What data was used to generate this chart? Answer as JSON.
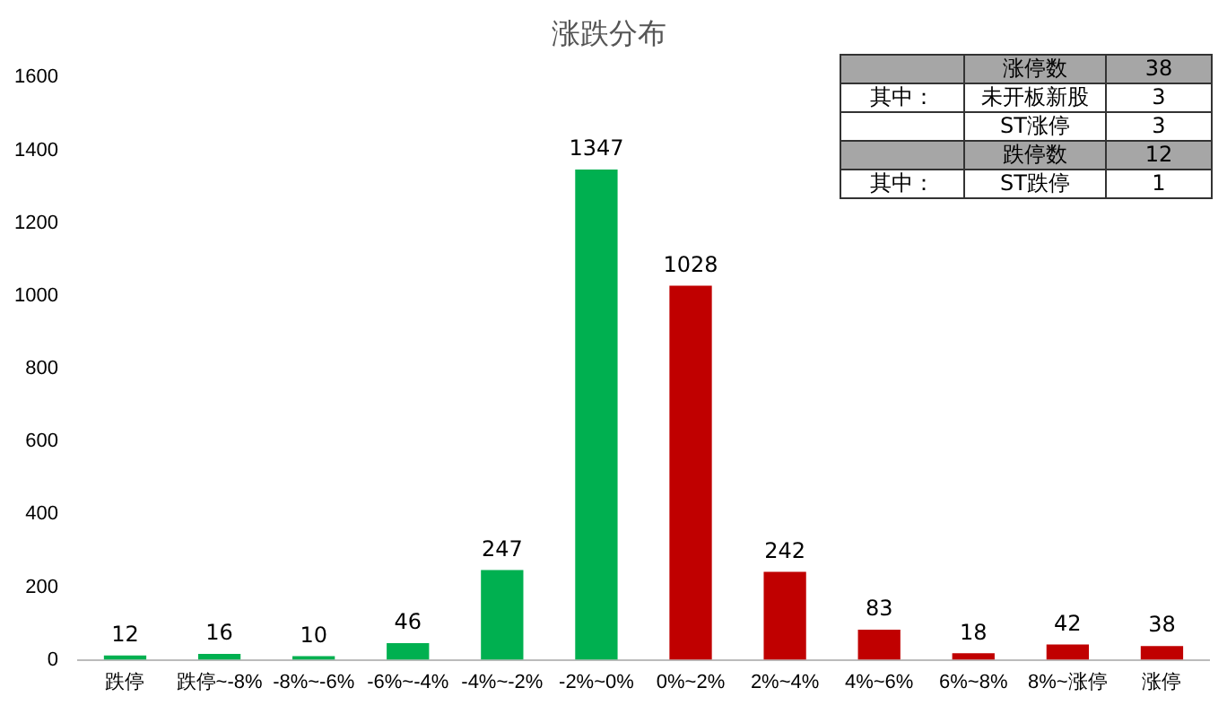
{
  "chart_data": {
    "type": "bar",
    "title": "涨跌分布",
    "categories": [
      "跌停",
      "跌停~-8%",
      "-8%~-6%",
      "-6%~-4%",
      "-4%~-2%",
      "-2%~0%",
      "0%~2%",
      "2%~4%",
      "4%~6%",
      "6%~8%",
      "8%~涨停",
      "涨停"
    ],
    "values": [
      12,
      16,
      10,
      46,
      247,
      1347,
      1028,
      242,
      83,
      18,
      42,
      38
    ],
    "colors": [
      "#00b050",
      "#00b050",
      "#00b050",
      "#00b050",
      "#00b050",
      "#00b050",
      "#c00000",
      "#c00000",
      "#c00000",
      "#c00000",
      "#c00000",
      "#c00000"
    ],
    "ylim": [
      0,
      1600
    ],
    "yticks": [
      0,
      200,
      400,
      600,
      800,
      1000,
      1200,
      1400,
      1600
    ],
    "grid": false,
    "data_labels": true,
    "legend": false,
    "annotations": [
      "涨停数",
      "38",
      "其中：",
      "未开板新股",
      "3",
      "ST涨停",
      "3",
      "跌停数",
      "12",
      "其中：",
      "ST跌停",
      "1"
    ]
  }
}
